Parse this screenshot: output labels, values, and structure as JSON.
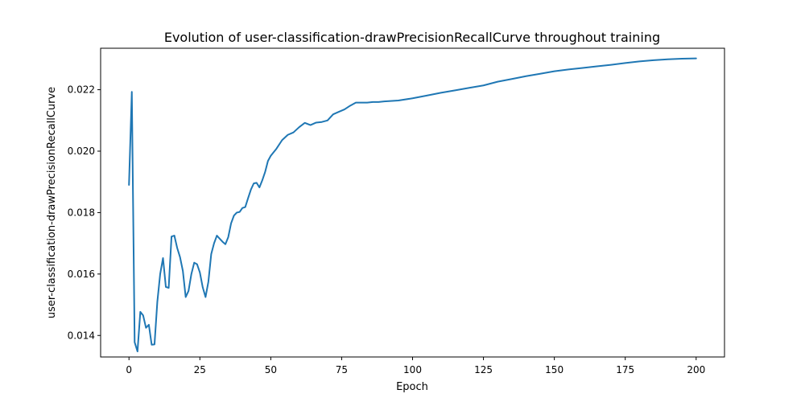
{
  "chart_data": {
    "type": "line",
    "title": "Evolution of user-classification-drawPrecisionRecallCurve throughout training",
    "xlabel": "Epoch",
    "ylabel": "user-classification-drawPrecisionRecallCurve",
    "xlim": [
      -10,
      210
    ],
    "ylim": [
      0.0133,
      0.02335
    ],
    "xticks": [
      0,
      25,
      50,
      75,
      100,
      125,
      150,
      175,
      200
    ],
    "yticks": [
      0.014,
      0.016,
      0.018,
      0.02,
      0.022
    ],
    "ytick_decimals": 3,
    "grid": false,
    "legend": "none",
    "line_color": "#1f77b4",
    "series": [
      {
        "x": [
          0,
          1,
          2,
          3,
          4,
          5,
          6,
          7,
          8,
          9,
          10,
          11,
          12,
          13,
          14,
          15,
          16,
          17,
          18,
          19,
          20,
          21,
          22,
          23,
          24,
          25,
          26,
          27,
          28,
          29,
          30,
          31,
          32,
          33,
          34,
          35,
          36,
          37,
          38,
          39,
          40,
          41,
          42,
          43,
          44,
          45,
          46,
          47,
          48,
          49,
          50,
          52,
          54,
          56,
          58,
          60,
          62,
          64,
          66,
          68,
          70,
          72,
          74,
          76,
          78,
          80,
          82,
          84,
          86,
          88,
          90,
          95,
          100,
          105,
          110,
          115,
          120,
          125,
          130,
          135,
          140,
          145,
          150,
          155,
          160,
          165,
          170,
          175,
          180,
          185,
          190,
          195,
          200
        ],
        "y": [
          0.0189,
          0.02193,
          0.01378,
          0.01348,
          0.01477,
          0.01465,
          0.01425,
          0.01435,
          0.0137,
          0.01371,
          0.0151,
          0.016,
          0.01652,
          0.01558,
          0.01555,
          0.01722,
          0.01725,
          0.01685,
          0.01655,
          0.0161,
          0.01525,
          0.01545,
          0.016,
          0.01637,
          0.01632,
          0.01605,
          0.01557,
          0.01525,
          0.01575,
          0.01665,
          0.017,
          0.01725,
          0.01715,
          0.01705,
          0.01697,
          0.0172,
          0.01765,
          0.0179,
          0.018,
          0.01802,
          0.01815,
          0.01818,
          0.01847,
          0.01875,
          0.01895,
          0.01897,
          0.01882,
          0.01905,
          0.01932,
          0.01968,
          0.01985,
          0.02008,
          0.02036,
          0.02053,
          0.02061,
          0.02078,
          0.02092,
          0.02085,
          0.02093,
          0.02095,
          0.021,
          0.0212,
          0.02128,
          0.02136,
          0.02148,
          0.02158,
          0.02158,
          0.02158,
          0.0216,
          0.0216,
          0.02162,
          0.02165,
          0.02172,
          0.02181,
          0.0219,
          0.02198,
          0.02206,
          0.02214,
          0.02226,
          0.02235,
          0.02244,
          0.02252,
          0.0226,
          0.02266,
          0.02271,
          0.02276,
          0.02281,
          0.02287,
          0.02292,
          0.02296,
          0.02299,
          0.02301,
          0.02302
        ]
      }
    ]
  }
}
